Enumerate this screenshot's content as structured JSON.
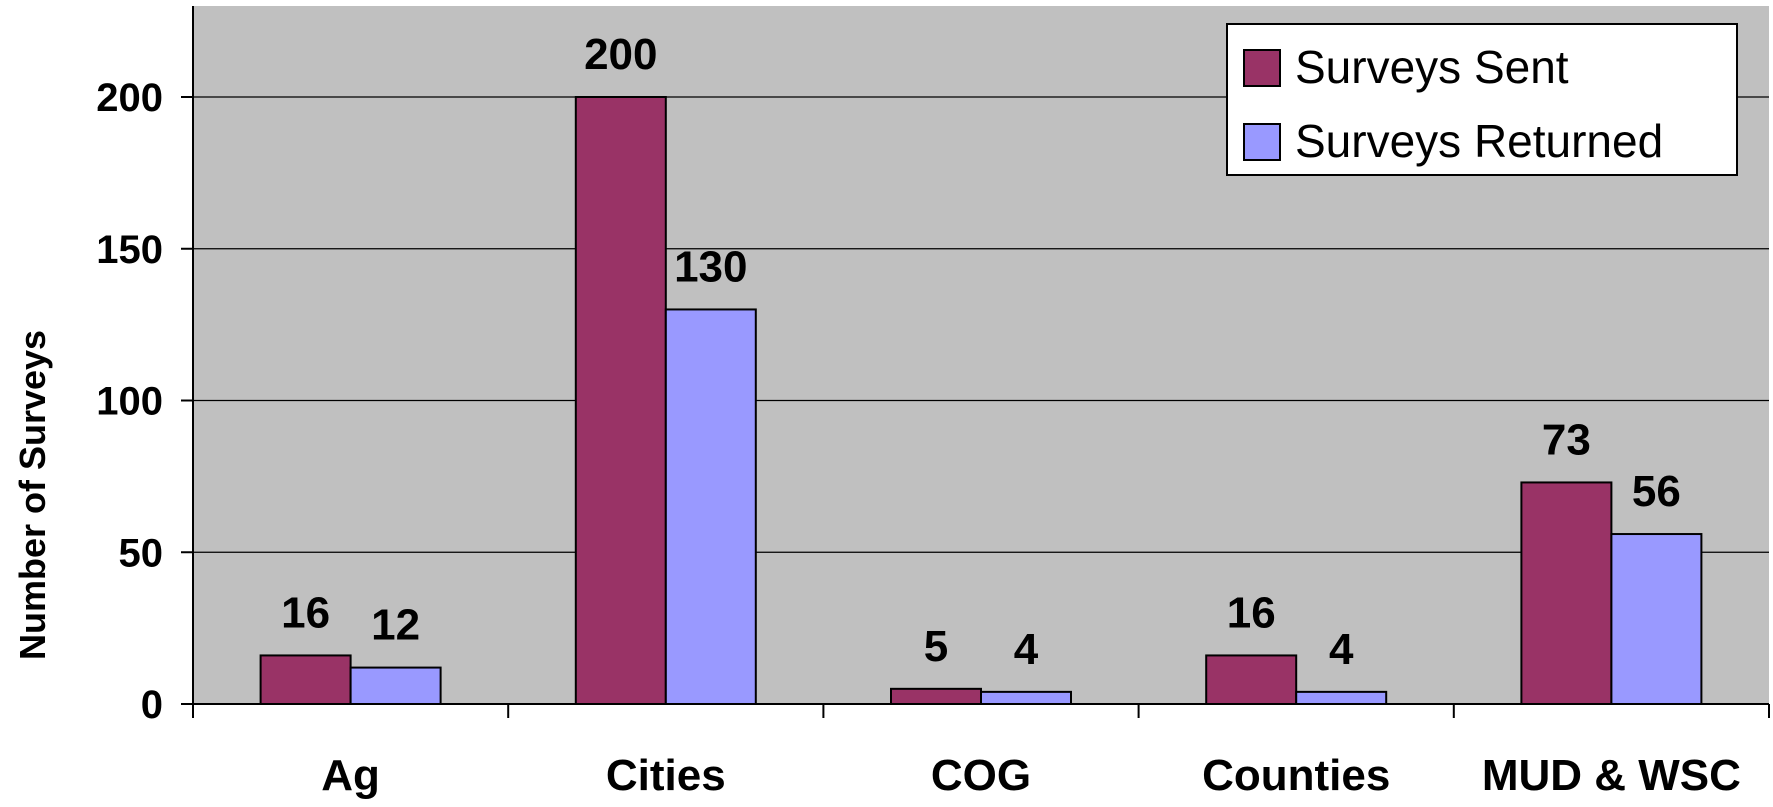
{
  "chart_data": {
    "type": "bar",
    "title": "",
    "xlabel": "",
    "ylabel": "Number of Surveys",
    "categories": [
      "Ag",
      "Cities",
      "COG",
      "Counties",
      "MUD & WSC"
    ],
    "series": [
      {
        "name": "Surveys Sent",
        "values": [
          16,
          200,
          5,
          16,
          73
        ],
        "color": "#993366"
      },
      {
        "name": "Surveys Returned",
        "values": [
          12,
          130,
          4,
          4,
          56
        ],
        "color": "#9999ff"
      }
    ],
    "yticks": [
      0,
      50,
      100,
      150,
      200
    ],
    "ylim": [
      0,
      230
    ],
    "grid": true,
    "legend": "top-right",
    "plot_background": "#c0c0c0"
  }
}
